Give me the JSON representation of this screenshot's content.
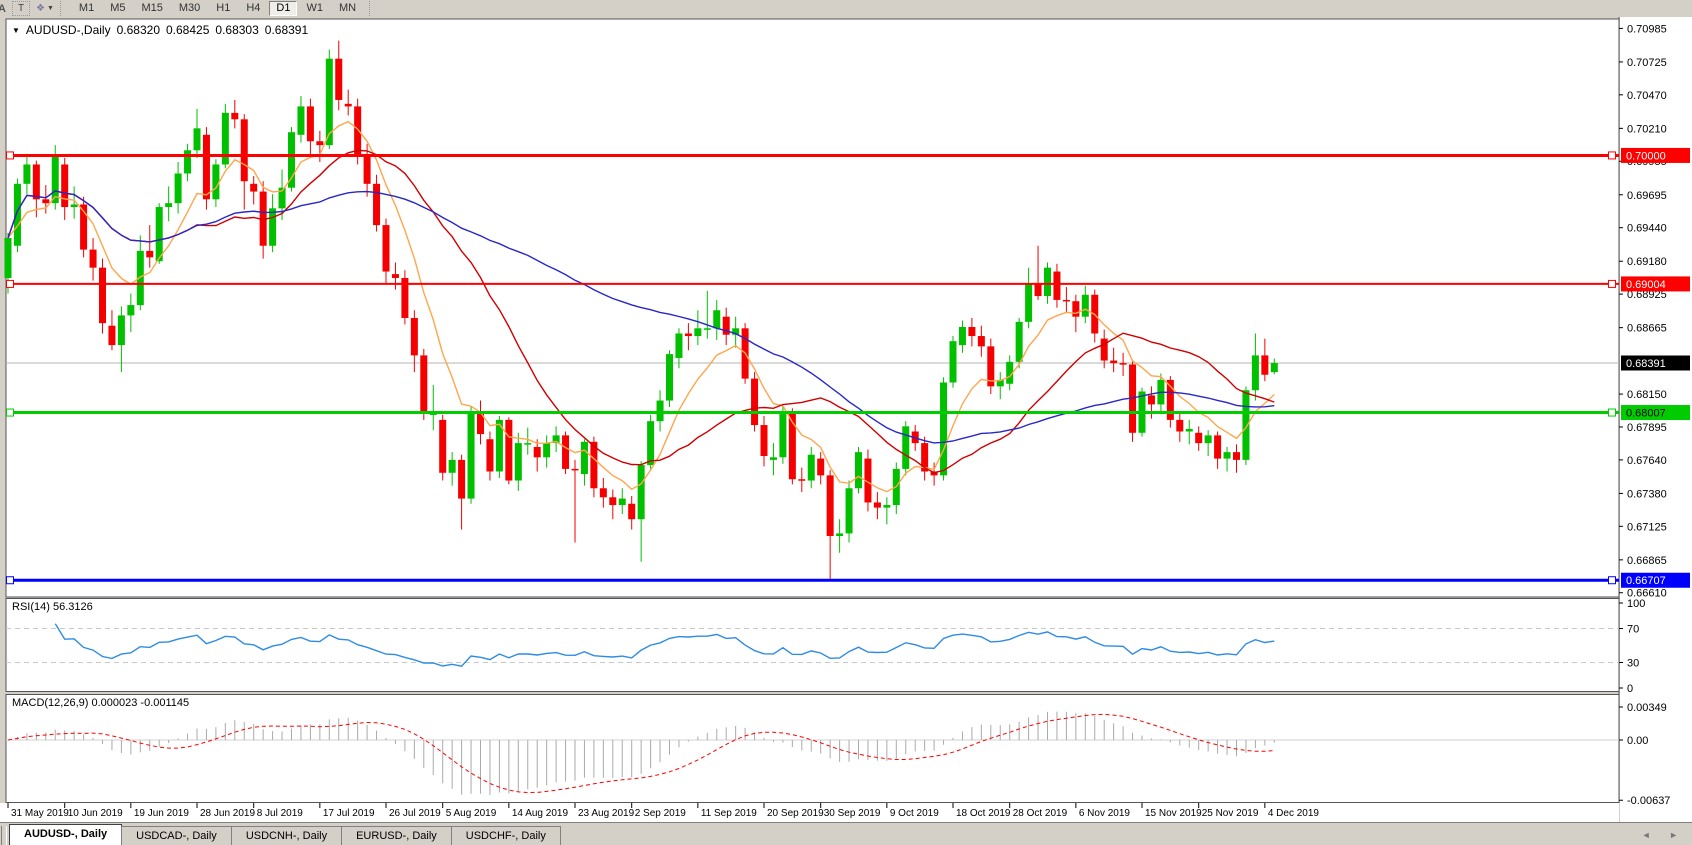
{
  "toolbar": {
    "partial_icon": "A",
    "text_tool": "T",
    "arrows_tool_icon": "arrow-style-tool",
    "timeframes": [
      "M1",
      "M5",
      "M15",
      "M30",
      "H1",
      "H4",
      "D1",
      "W1",
      "MN"
    ],
    "active_timeframe": "D1"
  },
  "chart": {
    "title": "AUDUSD-,Daily",
    "open": "0.68320",
    "high": "0.68425",
    "low": "0.68303",
    "close": "0.68391"
  },
  "indicators": {
    "rsi_label": "RSI(14) 56.3126",
    "macd_label": "MACD(12,26,9) 0.000023 -0.001145"
  },
  "tabs": {
    "items": [
      "AUDUSD-, Daily",
      "USDCAD-, Daily",
      "USDCNH-, Daily",
      "EURUSD-, Daily",
      "USDCHF-, Daily"
    ],
    "active_index": 0,
    "scroll_arrows": "◄ ►"
  },
  "chart_data": {
    "type": "candlestick",
    "symbol": "AUDUSD-,Daily",
    "colors": {
      "up": "#00c000",
      "down": "#f40000",
      "ma_fast": "#ffa64d",
      "ma_mid": "#d00000",
      "ma_slow": "#2828c8",
      "rsi_line": "#2e8be6",
      "level_dash": "#c8c8c8",
      "macd_hist": "#aaaaaa",
      "macd_signal": "#ff0000",
      "current_line": "#b4b4b4",
      "panel_border": "#555555"
    },
    "price_ticks": [
      "0.70985",
      "0.70725",
      "0.70470",
      "0.70210",
      "0.69955",
      "0.69695",
      "0.69440",
      "0.69180",
      "0.68925",
      "0.68665",
      "0.68150",
      "0.67895",
      "0.67640",
      "0.67380",
      "0.67125",
      "0.66865",
      "0.66610"
    ],
    "current_price": {
      "value": 0.68391,
      "label": "0.68391",
      "bg": "#000000",
      "text": "#ffffff"
    },
    "levels": [
      {
        "value": 0.7,
        "label": "0.70000",
        "color": "#ff0000",
        "text_color": "#ffffff",
        "width": 3
      },
      {
        "value": 0.69004,
        "label": "0.69004",
        "color": "#ff0000",
        "text_color": "#ffffff",
        "width": 2
      },
      {
        "value": 0.68007,
        "label": "0.68007",
        "color": "#00cc00",
        "text_color": "#000000",
        "width": 3
      },
      {
        "value": 0.66707,
        "label": "0.66707",
        "color": "#0000ff",
        "text_color": "#ffffff",
        "width": 3
      }
    ],
    "moving_averages": [
      {
        "name": "fast",
        "method": "ema",
        "period": 8
      },
      {
        "name": "mid",
        "method": "sma",
        "period": 20
      },
      {
        "name": "slow",
        "method": "sma",
        "period": 55
      }
    ],
    "rsi": {
      "period": 14,
      "current": 56.3126,
      "axis_labels": [
        "100",
        "70",
        "30",
        "0"
      ],
      "level_lines": [
        70,
        30
      ]
    },
    "macd": {
      "fast": 12,
      "slow": 26,
      "signal": 9,
      "main": 2.3e-05,
      "signal_value": -0.001145,
      "axis_labels": [
        "0.00349",
        "0.00",
        "-0.00637"
      ]
    },
    "date_ticks": [
      {
        "label": "31 May 2019",
        "bar": 0
      },
      {
        "label": "10 Jun 2019",
        "bar": 6
      },
      {
        "label": "19 Jun 2019",
        "bar": 13
      },
      {
        "label": "28 Jun 2019",
        "bar": 20
      },
      {
        "label": "8 Jul 2019",
        "bar": 26
      },
      {
        "label": "17 Jul 2019",
        "bar": 33
      },
      {
        "label": "26 Jul 2019",
        "bar": 40
      },
      {
        "label": "5 Aug 2019",
        "bar": 46
      },
      {
        "label": "14 Aug 2019",
        "bar": 53
      },
      {
        "label": "23 Aug 2019",
        "bar": 60
      },
      {
        "label": "2 Sep 2019",
        "bar": 66
      },
      {
        "label": "11 Sep 2019",
        "bar": 73
      },
      {
        "label": "20 Sep 2019",
        "bar": 80
      },
      {
        "label": "30 Sep 2019",
        "bar": 86
      },
      {
        "label": "9 Oct 2019",
        "bar": 93
      },
      {
        "label": "18 Oct 2019",
        "bar": 100
      },
      {
        "label": "28 Oct 2019",
        "bar": 106
      },
      {
        "label": "6 Nov 2019",
        "bar": 113
      },
      {
        "label": "15 Nov 2019",
        "bar": 120
      },
      {
        "label": "25 Nov 2019",
        "bar": 126
      },
      {
        "label": "4 Dec 2019",
        "bar": 133
      }
    ],
    "bars": [
      [
        0.6905,
        0.694,
        0.6893,
        0.6936
      ],
      [
        0.693,
        0.6982,
        0.6925,
        0.6978
      ],
      [
        0.6978,
        0.7,
        0.697,
        0.6993
      ],
      [
        0.6993,
        0.6996,
        0.6952,
        0.6966
      ],
      [
        0.6966,
        0.6977,
        0.6955,
        0.6963
      ],
      [
        0.6963,
        0.7008,
        0.6958,
        0.6999
      ],
      [
        0.6993,
        0.6998,
        0.695,
        0.696
      ],
      [
        0.696,
        0.6976,
        0.6951,
        0.6962
      ],
      [
        0.6962,
        0.6968,
        0.6921,
        0.6927
      ],
      [
        0.6927,
        0.6936,
        0.6903,
        0.6913
      ],
      [
        0.6913,
        0.692,
        0.6862,
        0.687
      ],
      [
        0.6868,
        0.688,
        0.6849,
        0.6853
      ],
      [
        0.6853,
        0.6883,
        0.6832,
        0.6876
      ],
      [
        0.6876,
        0.6893,
        0.6863,
        0.6884
      ],
      [
        0.6884,
        0.6938,
        0.688,
        0.6926
      ],
      [
        0.6926,
        0.6946,
        0.6913,
        0.6921
      ],
      [
        0.6918,
        0.6963,
        0.6916,
        0.696
      ],
      [
        0.696,
        0.6976,
        0.6949,
        0.6963
      ],
      [
        0.6963,
        0.6995,
        0.6955,
        0.6986
      ],
      [
        0.6986,
        0.7009,
        0.698,
        0.7004
      ],
      [
        0.7004,
        0.7036,
        0.6998,
        0.7021
      ],
      [
        0.7016,
        0.7022,
        0.6958,
        0.6966
      ],
      [
        0.6966,
        0.6997,
        0.696,
        0.6993
      ],
      [
        0.6993,
        0.704,
        0.699,
        0.7033
      ],
      [
        0.7033,
        0.7043,
        0.7021,
        0.7028
      ],
      [
        0.7028,
        0.7032,
        0.6958,
        0.698
      ],
      [
        0.6978,
        0.6984,
        0.6962,
        0.6972
      ],
      [
        0.6972,
        0.698,
        0.692,
        0.693
      ],
      [
        0.693,
        0.697,
        0.6925,
        0.6959
      ],
      [
        0.6959,
        0.6989,
        0.695,
        0.6975
      ],
      [
        0.6975,
        0.7022,
        0.6972,
        0.7018
      ],
      [
        0.7016,
        0.7046,
        0.701,
        0.7038
      ],
      [
        0.7038,
        0.7044,
        0.7,
        0.7011
      ],
      [
        0.7011,
        0.7019,
        0.6995,
        0.7008
      ],
      [
        0.7008,
        0.7082,
        0.7005,
        0.7075
      ],
      [
        0.7075,
        0.7089,
        0.7035,
        0.7043
      ],
      [
        0.704,
        0.7051,
        0.7031,
        0.7038
      ],
      [
        0.7038,
        0.7044,
        0.6993,
        0.7
      ],
      [
        0.7,
        0.7009,
        0.6968,
        0.6978
      ],
      [
        0.6978,
        0.6985,
        0.6941,
        0.6946
      ],
      [
        0.6946,
        0.6951,
        0.69,
        0.691
      ],
      [
        0.6908,
        0.6917,
        0.6896,
        0.6905
      ],
      [
        0.6905,
        0.6911,
        0.6869,
        0.6874
      ],
      [
        0.6874,
        0.688,
        0.6832,
        0.6845
      ],
      [
        0.6845,
        0.685,
        0.6795,
        0.68
      ],
      [
        0.68,
        0.6822,
        0.6787,
        0.68
      ],
      [
        0.6795,
        0.6799,
        0.6748,
        0.6754
      ],
      [
        0.6754,
        0.677,
        0.6744,
        0.6764
      ],
      [
        0.6764,
        0.6768,
        0.671,
        0.6734
      ],
      [
        0.6734,
        0.6805,
        0.673,
        0.68
      ],
      [
        0.68,
        0.681,
        0.6776,
        0.6784
      ],
      [
        0.678,
        0.6786,
        0.6748,
        0.6755
      ],
      [
        0.6755,
        0.6798,
        0.675,
        0.6795
      ],
      [
        0.6795,
        0.6797,
        0.6745,
        0.6748
      ],
      [
        0.6748,
        0.6785,
        0.674,
        0.6777
      ],
      [
        0.6777,
        0.6789,
        0.6768,
        0.6777
      ],
      [
        0.6774,
        0.678,
        0.6755,
        0.6766
      ],
      [
        0.6766,
        0.6783,
        0.6758,
        0.6777
      ],
      [
        0.6777,
        0.679,
        0.677,
        0.6783
      ],
      [
        0.6783,
        0.6786,
        0.6753,
        0.6757
      ],
      [
        0.6757,
        0.6764,
        0.67,
        0.6756
      ],
      [
        0.6753,
        0.678,
        0.6744,
        0.6778
      ],
      [
        0.6778,
        0.6782,
        0.6735,
        0.6742
      ],
      [
        0.6742,
        0.675,
        0.6727,
        0.6735
      ],
      [
        0.6735,
        0.6741,
        0.6718,
        0.6729
      ],
      [
        0.6729,
        0.6742,
        0.6722,
        0.6734
      ],
      [
        0.673,
        0.6736,
        0.671,
        0.6718
      ],
      [
        0.6718,
        0.6763,
        0.6685,
        0.676
      ],
      [
        0.676,
        0.6799,
        0.6756,
        0.6794
      ],
      [
        0.6794,
        0.6818,
        0.6786,
        0.681
      ],
      [
        0.681,
        0.6849,
        0.6805,
        0.6846
      ],
      [
        0.6843,
        0.6866,
        0.6835,
        0.6862
      ],
      [
        0.6862,
        0.687,
        0.6849,
        0.686
      ],
      [
        0.686,
        0.688,
        0.6853,
        0.6866
      ],
      [
        0.6866,
        0.6895,
        0.6858,
        0.6866
      ],
      [
        0.6866,
        0.6888,
        0.6857,
        0.688
      ],
      [
        0.6875,
        0.6882,
        0.6853,
        0.6861
      ],
      [
        0.6861,
        0.6875,
        0.6851,
        0.6866
      ],
      [
        0.6866,
        0.687,
        0.6823,
        0.6827
      ],
      [
        0.6827,
        0.6832,
        0.6786,
        0.6791
      ],
      [
        0.6791,
        0.6798,
        0.6759,
        0.6767
      ],
      [
        0.6764,
        0.6777,
        0.6752,
        0.6766
      ],
      [
        0.6766,
        0.6806,
        0.6761,
        0.68
      ],
      [
        0.68,
        0.6804,
        0.6745,
        0.6749
      ],
      [
        0.6749,
        0.6758,
        0.6739,
        0.6748
      ],
      [
        0.6748,
        0.6774,
        0.6742,
        0.6768
      ],
      [
        0.6765,
        0.677,
        0.6745,
        0.6752
      ],
      [
        0.6752,
        0.6756,
        0.667,
        0.6705
      ],
      [
        0.6705,
        0.6718,
        0.6692,
        0.6707
      ],
      [
        0.6707,
        0.6748,
        0.67,
        0.6742
      ],
      [
        0.6742,
        0.6774,
        0.6738,
        0.677
      ],
      [
        0.6765,
        0.6772,
        0.6724,
        0.6731
      ],
      [
        0.6731,
        0.6739,
        0.6718,
        0.6727
      ],
      [
        0.6727,
        0.6735,
        0.6714,
        0.6729
      ],
      [
        0.6729,
        0.6762,
        0.6722,
        0.6757
      ],
      [
        0.6757,
        0.6794,
        0.6752,
        0.679
      ],
      [
        0.6786,
        0.6791,
        0.6771,
        0.6777
      ],
      [
        0.6777,
        0.6782,
        0.6748,
        0.6755
      ],
      [
        0.6755,
        0.6762,
        0.6744,
        0.6752
      ],
      [
        0.6752,
        0.6828,
        0.6748,
        0.6824
      ],
      [
        0.6824,
        0.686,
        0.682,
        0.6856
      ],
      [
        0.6853,
        0.6872,
        0.6847,
        0.6867
      ],
      [
        0.6867,
        0.6874,
        0.6852,
        0.686
      ],
      [
        0.686,
        0.6868,
        0.6844,
        0.6852
      ],
      [
        0.6852,
        0.6858,
        0.6815,
        0.6821
      ],
      [
        0.6821,
        0.6832,
        0.6811,
        0.6826
      ],
      [
        0.6823,
        0.6845,
        0.6818,
        0.684
      ],
      [
        0.684,
        0.6874,
        0.6835,
        0.6871
      ],
      [
        0.6871,
        0.6913,
        0.6866,
        0.6901
      ],
      [
        0.6901,
        0.693,
        0.6888,
        0.6891
      ],
      [
        0.6891,
        0.6917,
        0.6885,
        0.6913
      ],
      [
        0.691,
        0.6916,
        0.6882,
        0.6888
      ],
      [
        0.6888,
        0.6898,
        0.6878,
        0.6887
      ],
      [
        0.6887,
        0.6892,
        0.6863,
        0.6875
      ],
      [
        0.6875,
        0.6899,
        0.687,
        0.6892
      ],
      [
        0.6892,
        0.6896,
        0.6855,
        0.6862
      ],
      [
        0.6858,
        0.6865,
        0.6835,
        0.6841
      ],
      [
        0.6841,
        0.6851,
        0.6832,
        0.6839
      ],
      [
        0.6839,
        0.6847,
        0.6829,
        0.6838
      ],
      [
        0.6838,
        0.6841,
        0.6778,
        0.6785
      ],
      [
        0.6785,
        0.682,
        0.6782,
        0.6817
      ],
      [
        0.6814,
        0.6821,
        0.6796,
        0.6807
      ],
      [
        0.6807,
        0.6831,
        0.6801,
        0.6826
      ],
      [
        0.6826,
        0.6829,
        0.6789,
        0.6795
      ],
      [
        0.6795,
        0.68,
        0.6778,
        0.6786
      ],
      [
        0.6786,
        0.6795,
        0.6776,
        0.6788
      ],
      [
        0.6785,
        0.679,
        0.6771,
        0.6777
      ],
      [
        0.6777,
        0.6787,
        0.6767,
        0.6783
      ],
      [
        0.6783,
        0.6786,
        0.6757,
        0.6765
      ],
      [
        0.6765,
        0.6774,
        0.6755,
        0.677
      ],
      [
        0.677,
        0.6776,
        0.6754,
        0.6764
      ],
      [
        0.6764,
        0.6821,
        0.676,
        0.6818
      ],
      [
        0.6818,
        0.6862,
        0.681,
        0.6845
      ],
      [
        0.6845,
        0.6858,
        0.6825,
        0.683
      ],
      [
        0.6832,
        0.68425,
        0.68303,
        0.68391
      ]
    ]
  }
}
